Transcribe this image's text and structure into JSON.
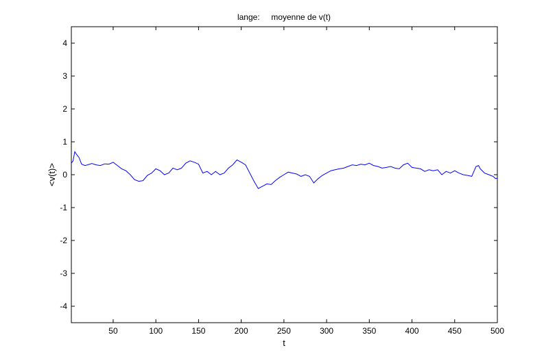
{
  "chart_data": {
    "type": "line",
    "title": "lange:     moyenne de v(t)",
    "xlabel": "t",
    "ylabel": "<v(t)>",
    "xlim": [
      1,
      500
    ],
    "ylim": [
      -4.5,
      4.5
    ],
    "xticks": [
      50,
      100,
      150,
      200,
      250,
      300,
      350,
      400,
      450,
      500
    ],
    "yticks": [
      -4,
      -3,
      -2,
      -1,
      0,
      1,
      2,
      3,
      4
    ],
    "grid": false,
    "series": [
      {
        "color": "#0000ff",
        "points": [
          [
            1,
            0.35
          ],
          [
            3,
            0.42
          ],
          [
            5,
            0.7
          ],
          [
            7,
            0.62
          ],
          [
            10,
            0.52
          ],
          [
            13,
            0.32
          ],
          [
            17,
            0.28
          ],
          [
            20,
            0.3
          ],
          [
            25,
            0.34
          ],
          [
            30,
            0.3
          ],
          [
            35,
            0.28
          ],
          [
            40,
            0.33
          ],
          [
            45,
            0.32
          ],
          [
            50,
            0.38
          ],
          [
            55,
            0.28
          ],
          [
            60,
            0.18
          ],
          [
            65,
            0.12
          ],
          [
            70,
            0.0
          ],
          [
            75,
            -0.15
          ],
          [
            80,
            -0.2
          ],
          [
            85,
            -0.18
          ],
          [
            90,
            -0.02
          ],
          [
            95,
            0.05
          ],
          [
            100,
            0.18
          ],
          [
            105,
            0.12
          ],
          [
            110,
            0.0
          ],
          [
            115,
            0.05
          ],
          [
            120,
            0.2
          ],
          [
            125,
            0.15
          ],
          [
            130,
            0.2
          ],
          [
            135,
            0.35
          ],
          [
            140,
            0.42
          ],
          [
            145,
            0.38
          ],
          [
            150,
            0.32
          ],
          [
            155,
            0.05
          ],
          [
            160,
            0.1
          ],
          [
            165,
            0.0
          ],
          [
            170,
            0.1
          ],
          [
            175,
            0.0
          ],
          [
            180,
            0.05
          ],
          [
            185,
            0.2
          ],
          [
            190,
            0.3
          ],
          [
            195,
            0.45
          ],
          [
            200,
            0.38
          ],
          [
            205,
            0.3
          ],
          [
            210,
            0.05
          ],
          [
            215,
            -0.2
          ],
          [
            220,
            -0.42
          ],
          [
            225,
            -0.35
          ],
          [
            230,
            -0.28
          ],
          [
            235,
            -0.3
          ],
          [
            240,
            -0.18
          ],
          [
            245,
            -0.08
          ],
          [
            250,
            0.0
          ],
          [
            255,
            0.08
          ],
          [
            260,
            0.05
          ],
          [
            265,
            0.02
          ],
          [
            270,
            -0.05
          ],
          [
            275,
            0.0
          ],
          [
            280,
            -0.05
          ],
          [
            285,
            -0.25
          ],
          [
            290,
            -0.12
          ],
          [
            295,
            -0.02
          ],
          [
            300,
            0.05
          ],
          [
            305,
            0.12
          ],
          [
            310,
            0.15
          ],
          [
            315,
            0.18
          ],
          [
            320,
            0.2
          ],
          [
            325,
            0.25
          ],
          [
            330,
            0.3
          ],
          [
            335,
            0.28
          ],
          [
            340,
            0.32
          ],
          [
            345,
            0.3
          ],
          [
            350,
            0.35
          ],
          [
            355,
            0.28
          ],
          [
            360,
            0.25
          ],
          [
            365,
            0.2
          ],
          [
            370,
            0.22
          ],
          [
            375,
            0.25
          ],
          [
            380,
            0.2
          ],
          [
            385,
            0.18
          ],
          [
            390,
            0.3
          ],
          [
            395,
            0.35
          ],
          [
            400,
            0.22
          ],
          [
            405,
            0.2
          ],
          [
            410,
            0.18
          ],
          [
            415,
            0.1
          ],
          [
            420,
            0.15
          ],
          [
            425,
            0.12
          ],
          [
            430,
            0.15
          ],
          [
            435,
            0.0
          ],
          [
            440,
            0.1
          ],
          [
            445,
            0.05
          ],
          [
            450,
            0.12
          ],
          [
            455,
            0.05
          ],
          [
            460,
            0.0
          ],
          [
            465,
            -0.02
          ],
          [
            470,
            -0.05
          ],
          [
            475,
            0.25
          ],
          [
            478,
            0.28
          ],
          [
            480,
            0.18
          ],
          [
            485,
            0.05
          ],
          [
            490,
            0.0
          ],
          [
            495,
            -0.05
          ],
          [
            498,
            -0.12
          ],
          [
            500,
            -0.1
          ]
        ]
      }
    ]
  }
}
